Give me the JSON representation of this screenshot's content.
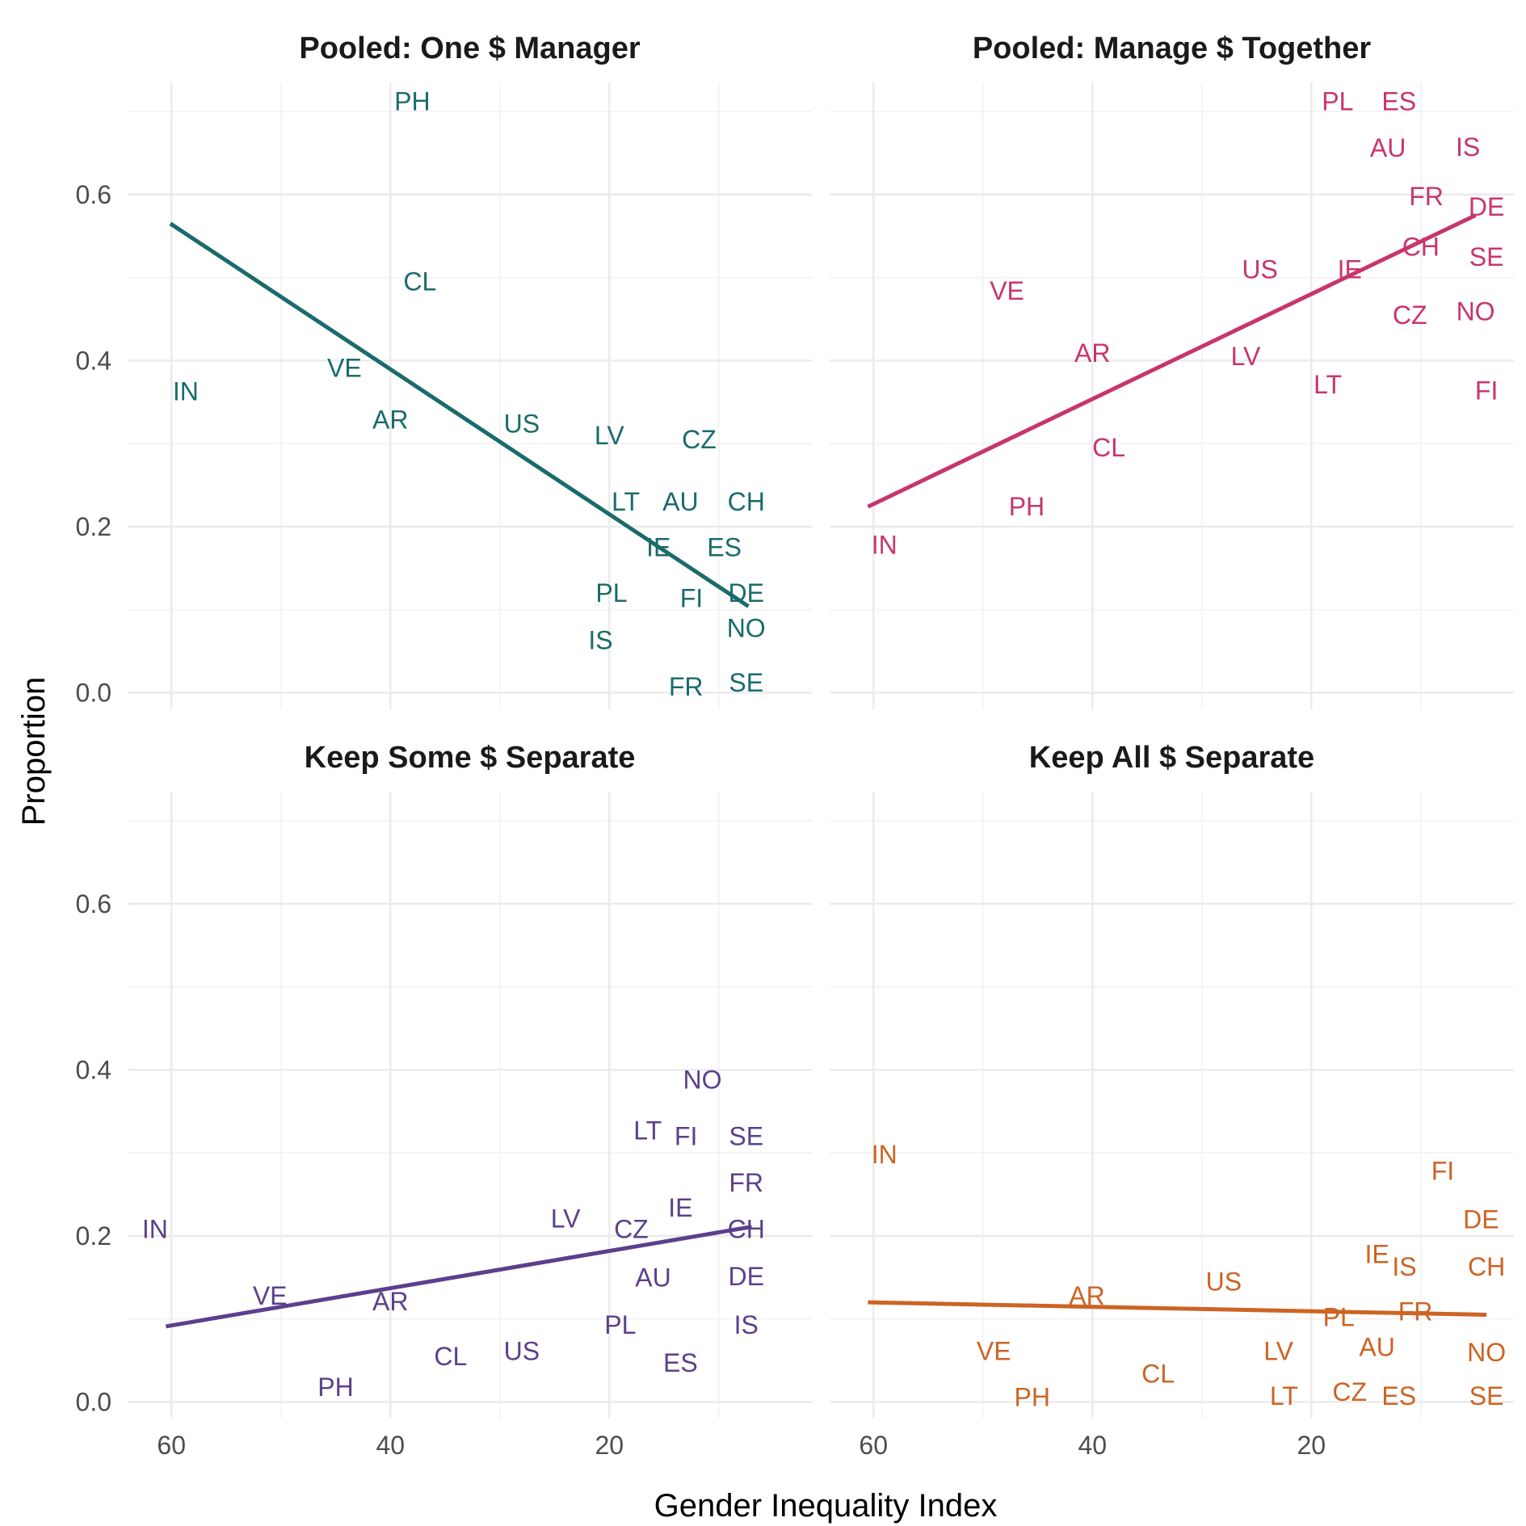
{
  "chart_data": {
    "type": "scatter",
    "xlabel": "Gender Inequality Index",
    "ylabel": "Proportion",
    "x_reversed": true,
    "xlim": [
      64,
      1.5
    ],
    "ylim": [
      -0.02,
      0.735
    ],
    "x_ticks": [
      60,
      40,
      20
    ],
    "y_ticks": [
      0.0,
      0.2,
      0.4,
      0.6
    ],
    "y_tick_labels": [
      "0.0",
      "0.2",
      "0.4",
      "0.6"
    ],
    "grid": true,
    "fit_line": "linear",
    "panels": [
      {
        "title": "Pooled: One $ Manager",
        "color": "#1b6b6b",
        "fit": [
          [
            60.1,
            0.565
          ],
          [
            7.3,
            0.104
          ]
        ],
        "points": [
          {
            "label": "PH",
            "x": 38.0,
            "y": 0.712
          },
          {
            "label": "CL",
            "x": 37.3,
            "y": 0.495
          },
          {
            "label": "IN",
            "x": 58.7,
            "y": 0.363
          },
          {
            "label": "VE",
            "x": 44.2,
            "y": 0.391
          },
          {
            "label": "AR",
            "x": 40.0,
            "y": 0.329
          },
          {
            "label": "US",
            "x": 28.0,
            "y": 0.324
          },
          {
            "label": "LV",
            "x": 20.0,
            "y": 0.31
          },
          {
            "label": "CZ",
            "x": 11.8,
            "y": 0.305
          },
          {
            "label": "LT",
            "x": 18.5,
            "y": 0.23
          },
          {
            "label": "AU",
            "x": 13.5,
            "y": 0.23
          },
          {
            "label": "CH",
            "x": 7.5,
            "y": 0.23
          },
          {
            "label": "IE",
            "x": 15.5,
            "y": 0.175
          },
          {
            "label": "ES",
            "x": 9.5,
            "y": 0.175
          },
          {
            "label": "PL",
            "x": 19.8,
            "y": 0.12
          },
          {
            "label": "DE",
            "x": 7.5,
            "y": 0.12
          },
          {
            "label": "FI",
            "x": 12.5,
            "y": 0.114
          },
          {
            "label": "NO",
            "x": 7.5,
            "y": 0.078
          },
          {
            "label": "IS",
            "x": 20.8,
            "y": 0.063
          },
          {
            "label": "FR",
            "x": 13.0,
            "y": 0.007
          },
          {
            "label": "SE",
            "x": 7.5,
            "y": 0.012
          }
        ]
      },
      {
        "title": "Pooled: Manage $ Together",
        "color": "#c8356e",
        "fit": [
          [
            60.5,
            0.224
          ],
          [
            5.0,
            0.575
          ]
        ],
        "points": [
          {
            "label": "PL",
            "x": 17.6,
            "y": 0.712
          },
          {
            "label": "ES",
            "x": 12.0,
            "y": 0.712
          },
          {
            "label": "AU",
            "x": 13.0,
            "y": 0.656
          },
          {
            "label": "IS",
            "x": 5.7,
            "y": 0.657
          },
          {
            "label": "FR",
            "x": 9.5,
            "y": 0.598
          },
          {
            "label": "DE",
            "x": 4.0,
            "y": 0.585
          },
          {
            "label": "CH",
            "x": 10.0,
            "y": 0.537
          },
          {
            "label": "SE",
            "x": 4.0,
            "y": 0.525
          },
          {
            "label": "US",
            "x": 24.7,
            "y": 0.51
          },
          {
            "label": "IE",
            "x": 16.5,
            "y": 0.51
          },
          {
            "label": "VE",
            "x": 47.8,
            "y": 0.484
          },
          {
            "label": "CZ",
            "x": 11.0,
            "y": 0.455
          },
          {
            "label": "NO",
            "x": 5.0,
            "y": 0.459
          },
          {
            "label": "AR",
            "x": 40.0,
            "y": 0.409
          },
          {
            "label": "LV",
            "x": 26.0,
            "y": 0.405
          },
          {
            "label": "LT",
            "x": 18.5,
            "y": 0.371
          },
          {
            "label": "FI",
            "x": 4.0,
            "y": 0.364
          },
          {
            "label": "CL",
            "x": 38.5,
            "y": 0.295
          },
          {
            "label": "PH",
            "x": 46.0,
            "y": 0.224
          },
          {
            "label": "IN",
            "x": 59.0,
            "y": 0.178
          }
        ]
      },
      {
        "title": "Keep Some $ Separate",
        "color": "#5c3f8c",
        "fit": [
          [
            60.5,
            0.091
          ],
          [
            7.0,
            0.211
          ]
        ],
        "points": [
          {
            "label": "NO",
            "x": 11.5,
            "y": 0.388
          },
          {
            "label": "LT",
            "x": 16.5,
            "y": 0.327
          },
          {
            "label": "FI",
            "x": 13.0,
            "y": 0.32
          },
          {
            "label": "SE",
            "x": 7.5,
            "y": 0.32
          },
          {
            "label": "FR",
            "x": 7.5,
            "y": 0.264
          },
          {
            "label": "IE",
            "x": 13.5,
            "y": 0.234
          },
          {
            "label": "LV",
            "x": 24.0,
            "y": 0.221
          },
          {
            "label": "CZ",
            "x": 18.0,
            "y": 0.208
          },
          {
            "label": "CH",
            "x": 7.5,
            "y": 0.208
          },
          {
            "label": "IN",
            "x": 61.5,
            "y": 0.208
          },
          {
            "label": "AU",
            "x": 16.0,
            "y": 0.15
          },
          {
            "label": "DE",
            "x": 7.5,
            "y": 0.151
          },
          {
            "label": "VE",
            "x": 51.0,
            "y": 0.128
          },
          {
            "label": "AR",
            "x": 40.0,
            "y": 0.121
          },
          {
            "label": "PL",
            "x": 19.0,
            "y": 0.093
          },
          {
            "label": "IS",
            "x": 7.5,
            "y": 0.093
          },
          {
            "label": "ES",
            "x": 13.5,
            "y": 0.047
          },
          {
            "label": "CL",
            "x": 34.5,
            "y": 0.055
          },
          {
            "label": "US",
            "x": 28.0,
            "y": 0.061
          },
          {
            "label": "PH",
            "x": 45.0,
            "y": 0.018
          }
        ]
      },
      {
        "title": "Keep All $ Separate",
        "color": "#cc6424",
        "fit": [
          [
            60.5,
            0.12
          ],
          [
            4.0,
            0.105
          ]
        ],
        "points": [
          {
            "label": "IN",
            "x": 59.0,
            "y": 0.298
          },
          {
            "label": "FI",
            "x": 8.0,
            "y": 0.278
          },
          {
            "label": "DE",
            "x": 4.5,
            "y": 0.22
          },
          {
            "label": "IE",
            "x": 14.0,
            "y": 0.178
          },
          {
            "label": "IS",
            "x": 11.5,
            "y": 0.163
          },
          {
            "label": "CH",
            "x": 4.0,
            "y": 0.163
          },
          {
            "label": "US",
            "x": 28.0,
            "y": 0.145
          },
          {
            "label": "AR",
            "x": 40.5,
            "y": 0.128
          },
          {
            "label": "PL",
            "x": 17.5,
            "y": 0.102
          },
          {
            "label": "FR",
            "x": 10.5,
            "y": 0.109
          },
          {
            "label": "VE",
            "x": 49.0,
            "y": 0.061
          },
          {
            "label": "LV",
            "x": 23.0,
            "y": 0.061
          },
          {
            "label": "AU",
            "x": 14.0,
            "y": 0.066
          },
          {
            "label": "NO",
            "x": 4.0,
            "y": 0.06
          },
          {
            "label": "CL",
            "x": 34.0,
            "y": 0.034
          },
          {
            "label": "PH",
            "x": 45.5,
            "y": 0.006
          },
          {
            "label": "LT",
            "x": 22.5,
            "y": 0.007
          },
          {
            "label": "CZ",
            "x": 16.5,
            "y": 0.012
          },
          {
            "label": "ES",
            "x": 12.0,
            "y": 0.007
          },
          {
            "label": "SE",
            "x": 4.0,
            "y": 0.007
          }
        ]
      }
    ]
  }
}
